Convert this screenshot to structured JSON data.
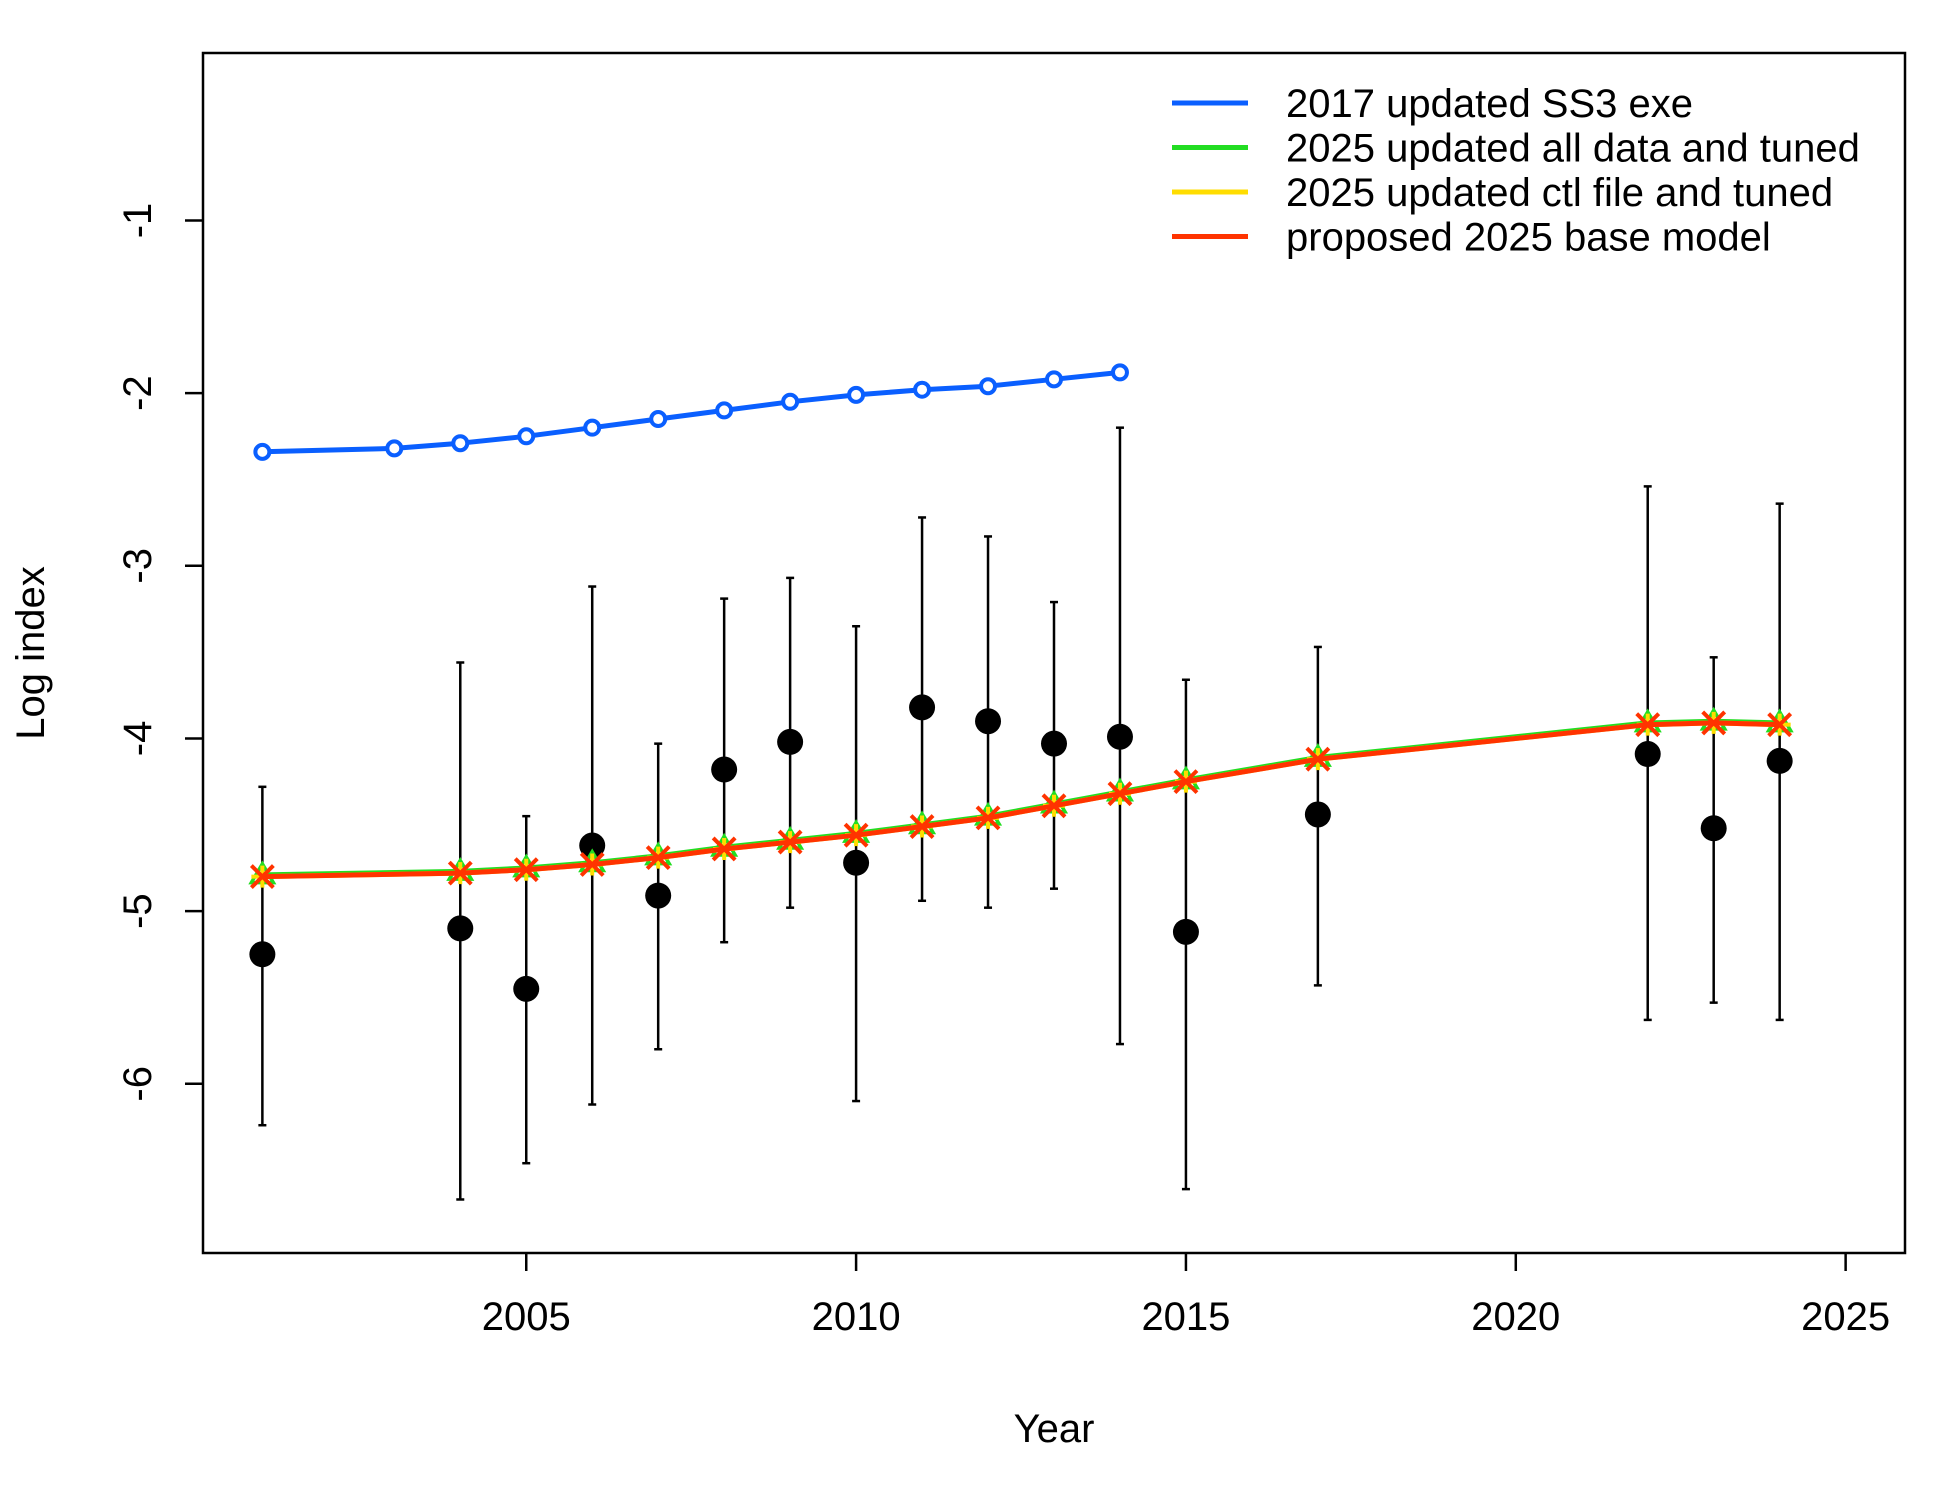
{
  "chart_data": {
    "type": "line",
    "title": "",
    "xlabel": "Year",
    "ylabel": "Log index",
    "xlim": [
      2000.1,
      2025.9
    ],
    "ylim": [
      -6.98,
      -0.03
    ],
    "x_ticks": [
      2005,
      2010,
      2015,
      2020,
      2025
    ],
    "y_ticks": [
      -6,
      -5,
      -4,
      -3,
      -2,
      -1
    ],
    "grid": false,
    "legend_position": "top-right",
    "observed": {
      "color": "#000000",
      "points": [
        {
          "x": 2001,
          "y": -5.25,
          "lo": -6.24,
          "hi": -4.28
        },
        {
          "x": 2004,
          "y": -5.1,
          "lo": -6.67,
          "hi": -3.56
        },
        {
          "x": 2005,
          "y": -5.45,
          "lo": -6.46,
          "hi": -4.45
        },
        {
          "x": 2006,
          "y": -4.62,
          "lo": -6.12,
          "hi": -3.12
        },
        {
          "x": 2007,
          "y": -4.91,
          "lo": -5.8,
          "hi": -4.03
        },
        {
          "x": 2008,
          "y": -4.18,
          "lo": -5.18,
          "hi": -3.19
        },
        {
          "x": 2009,
          "y": -4.02,
          "lo": -4.98,
          "hi": -3.07
        },
        {
          "x": 2010,
          "y": -4.72,
          "lo": -6.1,
          "hi": -3.35
        },
        {
          "x": 2011,
          "y": -3.82,
          "lo": -4.94,
          "hi": -2.72
        },
        {
          "x": 2012,
          "y": -3.9,
          "lo": -4.98,
          "hi": -2.83
        },
        {
          "x": 2013,
          "y": -4.03,
          "lo": -4.87,
          "hi": -3.21
        },
        {
          "x": 2014,
          "y": -3.99,
          "lo": -5.77,
          "hi": -2.2
        },
        {
          "x": 2015,
          "y": -5.12,
          "lo": -6.61,
          "hi": -3.66
        },
        {
          "x": 2017,
          "y": -4.44,
          "lo": -5.43,
          "hi": -3.47
        },
        {
          "x": 2022,
          "y": -4.09,
          "lo": -5.63,
          "hi": -2.54
        },
        {
          "x": 2023,
          "y": -4.52,
          "lo": -5.53,
          "hi": -3.53
        },
        {
          "x": 2024,
          "y": -4.13,
          "lo": -5.63,
          "hi": -2.64
        }
      ]
    },
    "series": [
      {
        "name": "2017 updated SS3 exe",
        "color": "#0a5fff",
        "marker": "circle",
        "x": [
          2001,
          2003,
          2004,
          2005,
          2006,
          2007,
          2008,
          2009,
          2010,
          2011,
          2012,
          2013,
          2014
        ],
        "values": [
          -2.34,
          -2.32,
          -2.29,
          -2.25,
          -2.2,
          -2.15,
          -2.1,
          -2.05,
          -2.01,
          -1.98,
          -1.96,
          -1.92,
          -1.88
        ]
      },
      {
        "name": "2025 updated all data and tuned",
        "color": "#22dd22",
        "marker": "triangle",
        "x": [
          2001,
          2004,
          2005,
          2006,
          2007,
          2008,
          2009,
          2010,
          2011,
          2012,
          2013,
          2014,
          2015,
          2017,
          2022,
          2023,
          2024
        ],
        "values": [
          -4.79,
          -4.77,
          -4.75,
          -4.72,
          -4.68,
          -4.63,
          -4.59,
          -4.55,
          -4.5,
          -4.45,
          -4.38,
          -4.31,
          -4.24,
          -4.11,
          -3.91,
          -3.9,
          -3.91
        ]
      },
      {
        "name": "2025 updated ctl file and tuned",
        "color": "#ffdd00",
        "marker": "plus",
        "x": [
          2001,
          2004,
          2005,
          2006,
          2007,
          2008,
          2009,
          2010,
          2011,
          2012,
          2013,
          2014,
          2015,
          2017,
          2022,
          2023,
          2024
        ],
        "values": [
          -4.8,
          -4.78,
          -4.76,
          -4.73,
          -4.69,
          -4.64,
          -4.6,
          -4.56,
          -4.51,
          -4.46,
          -4.39,
          -4.32,
          -4.25,
          -4.12,
          -3.92,
          -3.91,
          -3.92
        ]
      },
      {
        "name": "proposed 2025 base model",
        "color": "#ff3300",
        "marker": "cross",
        "x": [
          2001,
          2004,
          2005,
          2006,
          2007,
          2008,
          2009,
          2010,
          2011,
          2012,
          2013,
          2014,
          2015,
          2017,
          2022,
          2023,
          2024
        ],
        "values": [
          -4.8,
          -4.78,
          -4.76,
          -4.73,
          -4.69,
          -4.64,
          -4.6,
          -4.56,
          -4.51,
          -4.46,
          -4.39,
          -4.32,
          -4.25,
          -4.12,
          -3.92,
          -3.91,
          -3.92
        ]
      }
    ]
  }
}
